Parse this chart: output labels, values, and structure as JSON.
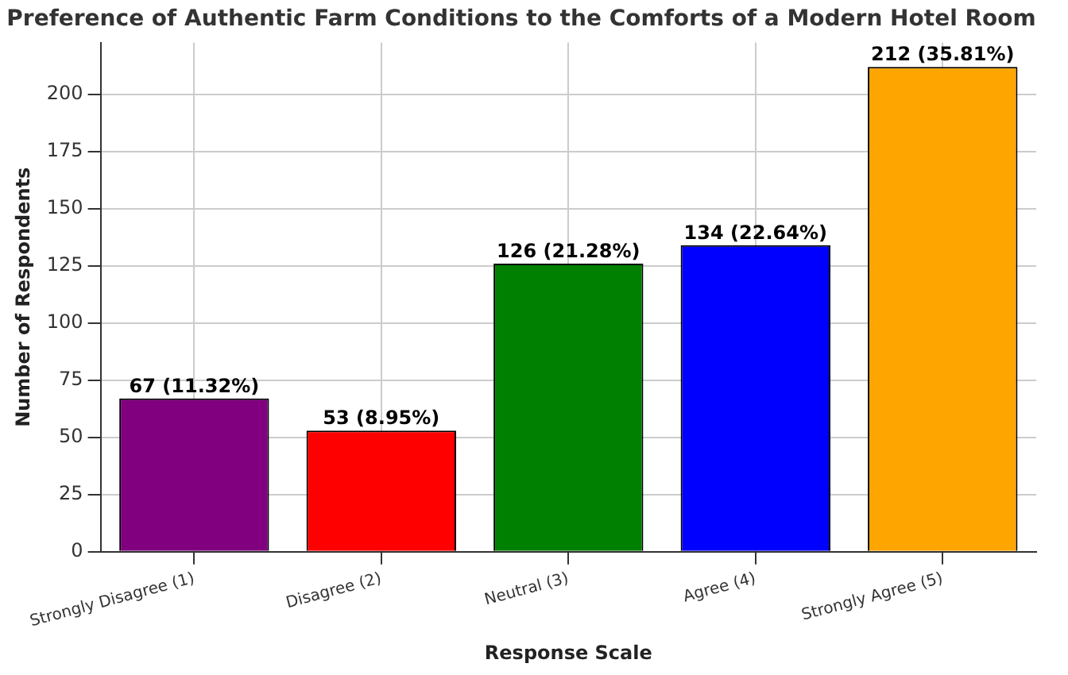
{
  "chart_data": {
    "type": "bar",
    "title": "Preference of Authentic Farm Conditions to the Comforts of a Modern Hotel Room",
    "xlabel": "Response Scale",
    "ylabel": "Number of Respondents",
    "categories": [
      "Strongly Disagree (1)",
      "Disagree (2)",
      "Neutral (3)",
      "Agree (4)",
      "Strongly Agree (5)"
    ],
    "values": [
      67,
      53,
      126,
      134,
      212
    ],
    "colors": [
      "#800080",
      "#ff0000",
      "#008000",
      "#0000ff",
      "#ffa500"
    ],
    "value_labels": [
      "67 (11.32%)",
      "53 (8.95%)",
      "126 (21.28%)",
      "134 (22.64%)",
      "212 (35.81%)"
    ],
    "ylim": [
      0,
      222.6
    ],
    "yticks": [
      0,
      25,
      50,
      75,
      100,
      125,
      150,
      175,
      200
    ],
    "grid": true
  }
}
